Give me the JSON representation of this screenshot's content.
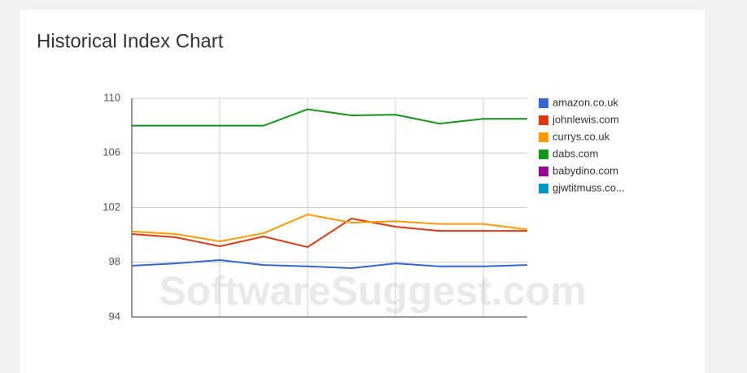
{
  "chart_data": {
    "type": "line",
    "title": "Historical Index Chart",
    "watermark": "SoftwareSuggest.com",
    "categories": [
      null,
      null,
      null,
      null,
      null,
      null,
      null,
      null,
      null,
      null
    ],
    "series": [
      {
        "name": "amazon.co.uk",
        "color": "#3366cc",
        "values": [
          97.75,
          97.92,
          98.16,
          97.8,
          97.7,
          97.57,
          97.92,
          97.7,
          97.7,
          97.8
        ]
      },
      {
        "name": "johnlewis.com",
        "color": "#dc3912",
        "values": [
          100.07,
          99.83,
          99.17,
          99.89,
          99.11,
          101.2,
          100.6,
          100.3,
          100.3,
          100.3
        ]
      },
      {
        "name": "currys.co.uk",
        "color": "#ff9900",
        "values": [
          100.25,
          100.07,
          99.53,
          100.13,
          101.5,
          100.9,
          101.0,
          100.8,
          100.8,
          100.4
        ]
      },
      {
        "name": "dabs.com",
        "color": "#109618",
        "values": [
          108.0,
          108.0,
          108.0,
          108.0,
          109.2,
          108.75,
          108.8,
          108.15,
          108.5,
          108.5
        ]
      },
      {
        "name": "babydino.com",
        "color": "#990099",
        "values": [
          null,
          null,
          null,
          null,
          null,
          null,
          null,
          null,
          null,
          null
        ]
      },
      {
        "name": "gjwtitmuss.co...",
        "color": "#0099c6",
        "values": [
          null,
          null,
          null,
          null,
          null,
          null,
          null,
          null,
          null,
          null
        ]
      }
    ],
    "ylim": [
      94,
      110
    ],
    "yticks": [
      94,
      98,
      102,
      106,
      110
    ],
    "grid": true,
    "legend": "right"
  }
}
